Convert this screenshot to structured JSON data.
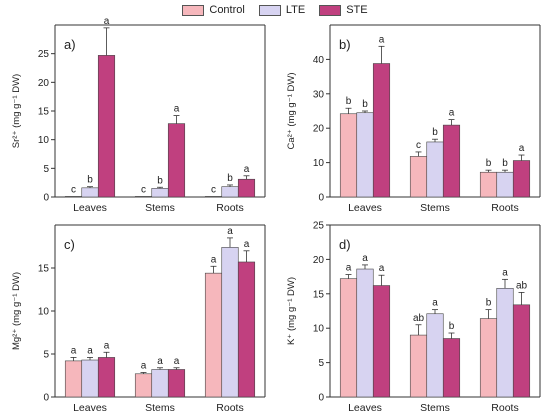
{
  "legend": [
    {
      "name": "Control",
      "color": "#f6b7bc"
    },
    {
      "name": "LTE",
      "color": "#d7d3f1"
    },
    {
      "name": "STE",
      "color": "#c0407f"
    }
  ],
  "chart_data": [
    {
      "type": "bar",
      "panel": "a)",
      "ylabel": "Sr²⁺ (mg g⁻¹ DW)",
      "ylim": [
        0,
        30
      ],
      "yticks": [
        0,
        5,
        10,
        15,
        20,
        25
      ],
      "categories": [
        "Leaves",
        "Stems",
        "Roots"
      ],
      "series": [
        {
          "name": "Control",
          "values": [
            0.1,
            0.1,
            0.1
          ],
          "errors": [
            0,
            0,
            0
          ],
          "letters": [
            "c",
            "c",
            "c"
          ]
        },
        {
          "name": "LTE",
          "values": [
            1.6,
            1.5,
            1.8
          ],
          "errors": [
            0.2,
            0.2,
            0.3
          ],
          "letters": [
            "b",
            "b",
            "b"
          ]
        },
        {
          "name": "STE",
          "values": [
            24.7,
            12.8,
            3.1
          ],
          "errors": [
            4.8,
            1.4,
            0.6
          ],
          "letters": [
            "a",
            "a",
            "a"
          ]
        }
      ]
    },
    {
      "type": "bar",
      "panel": "b)",
      "ylabel": "Ca²⁺ (mg g⁻¹ DW)",
      "ylim": [
        0,
        50
      ],
      "yticks": [
        0,
        10,
        20,
        30,
        40
      ],
      "categories": [
        "Leaves",
        "Stems",
        "Roots"
      ],
      "series": [
        {
          "name": "Control",
          "values": [
            24.2,
            11.8,
            7.2
          ],
          "errors": [
            1.6,
            1.3,
            0.6
          ],
          "letters": [
            "b",
            "c",
            "b"
          ]
        },
        {
          "name": "LTE",
          "values": [
            24.5,
            16.0,
            7.2
          ],
          "errors": [
            0.5,
            0.8,
            0.6
          ],
          "letters": [
            "b",
            "b",
            "b"
          ]
        },
        {
          "name": "STE",
          "values": [
            38.8,
            20.9,
            10.6
          ],
          "errors": [
            5.0,
            1.6,
            1.6
          ],
          "letters": [
            "a",
            "a",
            "a"
          ]
        }
      ]
    },
    {
      "type": "bar",
      "panel": "c)",
      "ylabel": "Mg²⁺ (mg g⁻¹ DW)",
      "ylim": [
        0,
        20
      ],
      "yticks": [
        0,
        5,
        10,
        15
      ],
      "categories": [
        "Leaves",
        "Stems",
        "Roots"
      ],
      "series": [
        {
          "name": "Control",
          "values": [
            4.2,
            2.7,
            14.4
          ],
          "errors": [
            0.4,
            0.15,
            0.8
          ],
          "letters": [
            "a",
            "a",
            "a"
          ]
        },
        {
          "name": "LTE",
          "values": [
            4.3,
            3.2,
            17.4
          ],
          "errors": [
            0.3,
            0.2,
            1.1
          ],
          "letters": [
            "a",
            "a",
            "a"
          ]
        },
        {
          "name": "STE",
          "values": [
            4.6,
            3.2,
            15.7
          ],
          "errors": [
            0.6,
            0.2,
            1.3
          ],
          "letters": [
            "a",
            "a",
            "a"
          ]
        }
      ]
    },
    {
      "type": "bar",
      "panel": "d)",
      "ylabel": "K⁺ (mg g⁻¹ DW)",
      "ylim": [
        0,
        25
      ],
      "yticks": [
        0,
        5,
        10,
        15,
        20,
        25
      ],
      "categories": [
        "Leaves",
        "Stems",
        "Roots"
      ],
      "series": [
        {
          "name": "Control",
          "values": [
            17.2,
            9.0,
            11.4
          ],
          "errors": [
            0.6,
            1.5,
            1.3
          ],
          "letters": [
            "a",
            "ab",
            "b"
          ]
        },
        {
          "name": "LTE",
          "values": [
            18.6,
            12.1,
            15.8
          ],
          "errors": [
            0.6,
            0.6,
            1.3
          ],
          "letters": [
            "a",
            "a",
            "a"
          ]
        },
        {
          "name": "STE",
          "values": [
            16.2,
            8.5,
            13.4
          ],
          "errors": [
            1.5,
            0.8,
            1.8
          ],
          "letters": [
            "a",
            "b",
            "ab"
          ]
        }
      ]
    }
  ]
}
